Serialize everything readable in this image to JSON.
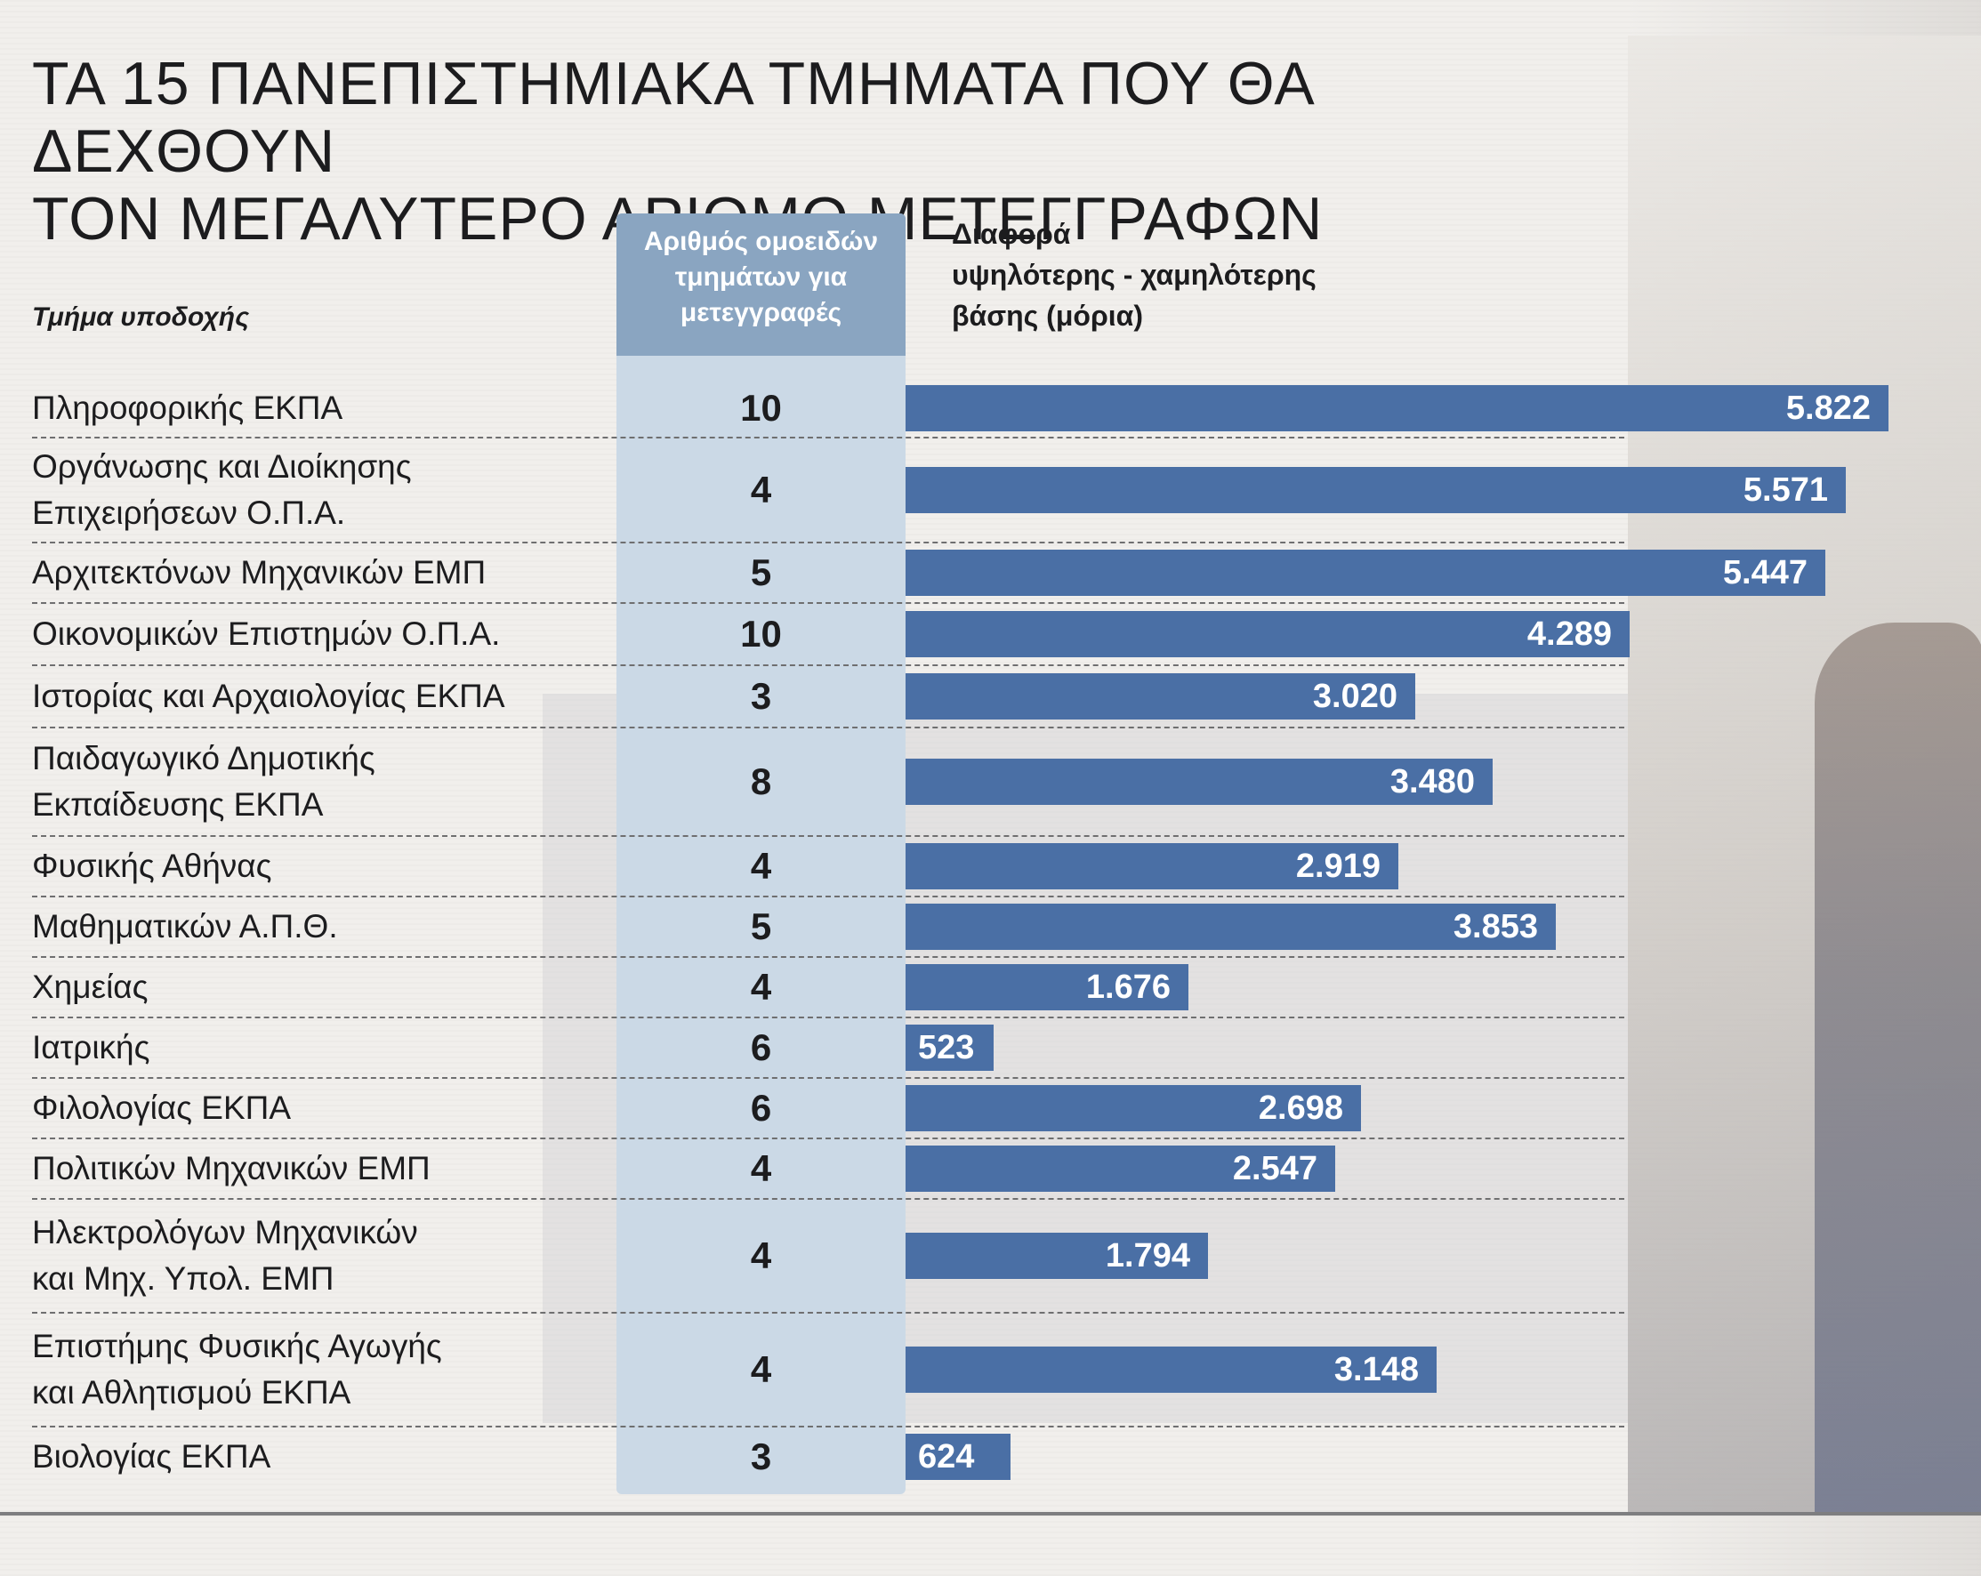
{
  "title_lines": [
    "ΤΑ 15 ΠΑΝΕΠΙΣΤΗΜΙΑΚΑ ΤΜΗΜΑΤΑ ΠΟΥ ΘΑ ΔΕΧΘΟΥΝ",
    "ΤΟΝ ΜΕΓΑΛΥΤΕΡΟ ΑΡΙΘΜΟ ΜΕΤΕΓΓΡΑΦΩΝ"
  ],
  "label_header": "Τμήμα υποδοχής",
  "count_header_lines": [
    "Αριθμός ομοειδών",
    "τμημάτων για",
    "μετεγγραφές"
  ],
  "value_header_lines": [
    "Διαφορά",
    "υψηλότερης - χαμηλότερης",
    "βάσης (μόρια)"
  ],
  "colors": {
    "bar": "#4a6fa5",
    "count_band": "#cbd9e6",
    "count_header": "#8aa5c1"
  },
  "chart_data": {
    "type": "bar",
    "orientation": "horizontal",
    "categories": [
      "Πληροφορικής ΕΚΠΑ",
      "Οργάνωσης και Διοίκησης Επιχειρήσεων Ο.Π.Α.",
      "Αρχιτεκτόνων Μηχανικών ΕΜΠ",
      "Οικονομικών Επιστημών Ο.Π.Α.",
      "Ιστορίας και Αρχαιολογίας ΕΚΠΑ",
      "Παιδαγωγικό Δημοτικής Εκπαίδευσης ΕΚΠΑ",
      "Φυσικής Αθήνας",
      "Μαθηματικών Α.Π.Θ.",
      "Χημείας",
      "Ιατρικής",
      "Φιλολογίας ΕΚΠΑ",
      "Πολιτικών Μηχανικών ΕΜΠ",
      "Ηλεκτρολόγων Μηχανικών και Μηχ. Υπολ. ΕΜΠ",
      "Επιστήμης Φυσικής Αγωγής και Αθλητισμού ΕΚΠΑ",
      "Βιολογίας ΕΚΠΑ"
    ],
    "label_lines": [
      [
        "Πληροφορικής ΕΚΠΑ"
      ],
      [
        "Οργάνωσης και Διοίκησης",
        "Επιχειρήσεων Ο.Π.Α."
      ],
      [
        "Αρχιτεκτόνων Μηχανικών ΕΜΠ"
      ],
      [
        "Οικονομικών Επιστημών Ο.Π.Α."
      ],
      [
        "Ιστορίας και Αρχαιολογίας ΕΚΠΑ"
      ],
      [
        "Παιδαγωγικό Δημοτικής",
        "Εκπαίδευσης ΕΚΠΑ"
      ],
      [
        "Φυσικής Αθήνας"
      ],
      [
        "Μαθηματικών Α.Π.Θ."
      ],
      [
        "Χημείας"
      ],
      [
        "Ιατρικής"
      ],
      [
        "Φιλολογίας ΕΚΠΑ"
      ],
      [
        "Πολιτικών Μηχανικών ΕΜΠ"
      ],
      [
        "Ηλεκτρολόγων Μηχανικών",
        "και Μηχ. Υπολ. ΕΜΠ"
      ],
      [
        "Επιστήμης Φυσικής Αγωγής",
        "και Αθλητισμού ΕΚΠΑ"
      ],
      [
        "Βιολογίας ΕΚΠΑ"
      ]
    ],
    "counts": [
      10,
      4,
      5,
      10,
      3,
      8,
      4,
      5,
      4,
      6,
      6,
      4,
      4,
      4,
      3
    ],
    "values": [
      5822,
      5571,
      5447,
      4289,
      3020,
      3480,
      2919,
      3853,
      1676,
      523,
      2698,
      2547,
      1794,
      3148,
      624
    ],
    "value_labels": [
      "5.822",
      "5.571",
      "5.447",
      "4.289",
      "3.020",
      "3.480",
      "2.919",
      "3.853",
      "1.676",
      "523",
      "2.698",
      "2.547",
      "1.794",
      "3.148",
      "624"
    ],
    "xlim": [
      0,
      5822
    ]
  }
}
